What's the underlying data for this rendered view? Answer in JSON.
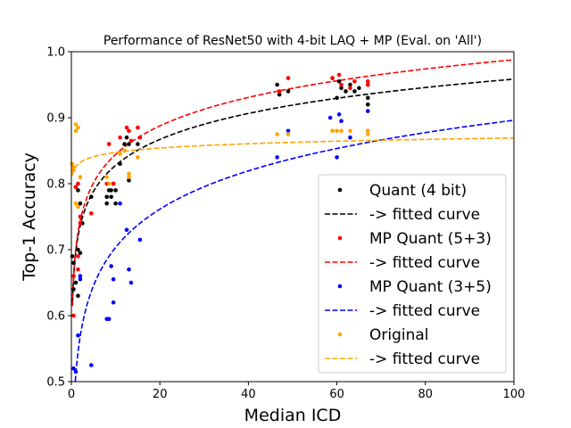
{
  "chart_data": {
    "type": "scatter",
    "title": "Performance of ResNet50 with 4-bit LAQ + MP (Eval. on 'All')",
    "xlabel": "Median ICD",
    "ylabel": "Top-1 Accuracy",
    "xlim": [
      0,
      100
    ],
    "ylim": [
      0.5,
      1.0
    ],
    "xticks": [
      "0",
      "20",
      "40",
      "60",
      "80",
      "100"
    ],
    "yticks": [
      "0.5",
      "0.6",
      "0.7",
      "0.8",
      "0.9",
      "1.0"
    ],
    "grid": false,
    "legend_position": "lower-right",
    "series": [
      {
        "name": "Quant (4 bit)",
        "color": "#000000",
        "points": [
          [
            0.2,
            0.69
          ],
          [
            0.5,
            0.68
          ],
          [
            0.5,
            0.64
          ],
          [
            1,
            0.65
          ],
          [
            1,
            0.795
          ],
          [
            1.5,
            0.79
          ],
          [
            1.5,
            0.7
          ],
          [
            1.5,
            0.63
          ],
          [
            2,
            0.695
          ],
          [
            2,
            0.77
          ],
          [
            2.5,
            0.74
          ],
          [
            4.5,
            0.78
          ],
          [
            8,
            0.78
          ],
          [
            8,
            0.77
          ],
          [
            8.5,
            0.79
          ],
          [
            9,
            0.78
          ],
          [
            9,
            0.79
          ],
          [
            9.5,
            0.8
          ],
          [
            10,
            0.77
          ],
          [
            10,
            0.79
          ],
          [
            11,
            0.83
          ],
          [
            12,
            0.86
          ],
          [
            12.5,
            0.87
          ],
          [
            13,
            0.86
          ],
          [
            13,
            0.805
          ],
          [
            15,
            0.86
          ],
          [
            46.5,
            0.95
          ],
          [
            47,
            0.935
          ],
          [
            49,
            0.94
          ],
          [
            59,
            0.96
          ],
          [
            60,
            0.93
          ],
          [
            60.5,
            0.955
          ],
          [
            61,
            0.945
          ],
          [
            62,
            0.94
          ],
          [
            63,
            0.95
          ],
          [
            64,
            0.94
          ],
          [
            65,
            0.945
          ],
          [
            67,
            0.95
          ],
          [
            67,
            0.93
          ],
          [
            67,
            0.92
          ]
        ],
        "fit": "log"
      },
      {
        "name": "-> fitted curve",
        "color": "#000000"
      },
      {
        "name": "MP Quant (5+3)",
        "color": "#ff0000",
        "points": [
          [
            0.5,
            0.66
          ],
          [
            0.5,
            0.6
          ],
          [
            1,
            0.795
          ],
          [
            1.5,
            0.8
          ],
          [
            1.5,
            0.69
          ],
          [
            1.5,
            0.67
          ],
          [
            2,
            0.75
          ],
          [
            2,
            0.74
          ],
          [
            4.5,
            0.755
          ],
          [
            8,
            0.8
          ],
          [
            8.5,
            0.86
          ],
          [
            9.5,
            0.8
          ],
          [
            11,
            0.87
          ],
          [
            12.5,
            0.885
          ],
          [
            13,
            0.88
          ],
          [
            13.5,
            0.865
          ],
          [
            15,
            0.885
          ],
          [
            15.5,
            0.87
          ],
          [
            47,
            0.94
          ],
          [
            49,
            0.96
          ],
          [
            59,
            0.96
          ],
          [
            60.5,
            0.965
          ],
          [
            61,
            0.95
          ],
          [
            63,
            0.945
          ],
          [
            64,
            0.955
          ],
          [
            67,
            0.955
          ],
          [
            67,
            0.95
          ]
        ],
        "fit": "log"
      },
      {
        "name": "-> fitted curve",
        "color": "#ff0000"
      },
      {
        "name": "MP Quant (3+5)",
        "color": "#0000ff",
        "points": [
          [
            0.5,
            0.52
          ],
          [
            1,
            0.515
          ],
          [
            1.5,
            0.57
          ],
          [
            2,
            0.66
          ],
          [
            2,
            0.655
          ],
          [
            4.5,
            0.525
          ],
          [
            8,
            0.595
          ],
          [
            8.5,
            0.595
          ],
          [
            9,
            0.675
          ],
          [
            9.5,
            0.62
          ],
          [
            9.5,
            0.655
          ],
          [
            11,
            0.77
          ],
          [
            12.5,
            0.73
          ],
          [
            13,
            0.67
          ],
          [
            13.5,
            0.65
          ],
          [
            15.5,
            0.715
          ],
          [
            46.5,
            0.84
          ],
          [
            49,
            0.88
          ],
          [
            58.5,
            0.9
          ],
          [
            60,
            0.84
          ],
          [
            60.5,
            0.905
          ],
          [
            61,
            0.895
          ],
          [
            63,
            0.87
          ],
          [
            67,
            0.91
          ],
          [
            67,
            0.88
          ]
        ],
        "fit": "log"
      },
      {
        "name": "-> fitted curve",
        "color": "#0000ff"
      },
      {
        "name": "Original",
        "color": "#ffa500",
        "points": [
          [
            0.2,
            0.83
          ],
          [
            0.5,
            0.825
          ],
          [
            0.5,
            0.82
          ],
          [
            1,
            0.89
          ],
          [
            1,
            0.88
          ],
          [
            1.5,
            0.885
          ],
          [
            1,
            0.77
          ],
          [
            1.5,
            0.765
          ],
          [
            2,
            0.81
          ],
          [
            8,
            0.81
          ],
          [
            8.5,
            0.8
          ],
          [
            11,
            0.845
          ],
          [
            12,
            0.85
          ],
          [
            13,
            0.815
          ],
          [
            13,
            0.81
          ],
          [
            15,
            0.84
          ],
          [
            46.5,
            0.875
          ],
          [
            49,
            0.875
          ],
          [
            59,
            0.88
          ],
          [
            60,
            0.88
          ],
          [
            61,
            0.88
          ],
          [
            63,
            0.88
          ],
          [
            67,
            0.88
          ],
          [
            67,
            0.875
          ]
        ],
        "fit": "log"
      },
      {
        "name": "-> fitted curve",
        "color": "#ffa500"
      }
    ]
  }
}
